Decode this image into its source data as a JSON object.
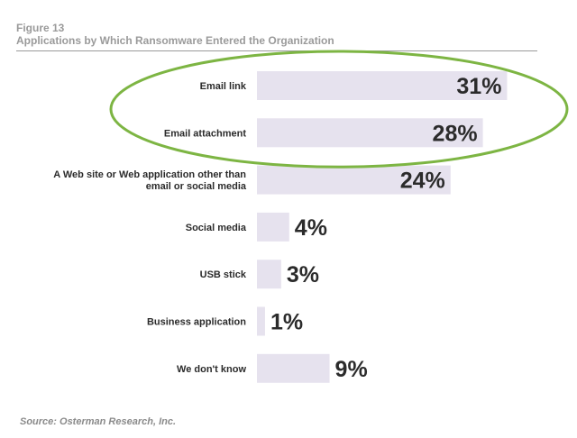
{
  "figure": {
    "label": "Figure 13",
    "title": "Applications by Which Ransomware Entered the Organization",
    "source": "Source: Osterman Research, Inc."
  },
  "colors": {
    "bar": "#e6e2ee",
    "value_text": "#2b2b2b",
    "category_text": "#2b2b2b",
    "highlight_ellipse": "#7db543"
  },
  "chart_data": {
    "type": "bar",
    "orientation": "horizontal",
    "categories": [
      "Email link",
      "Email attachment",
      "A Web site or Web application other than email or social media",
      "Social media",
      "USB stick",
      "Business application",
      "We don't know"
    ],
    "category_lines": [
      [
        "Email link"
      ],
      [
        "Email attachment"
      ],
      [
        "A Web site or Web application other than",
        "email or social media"
      ],
      [
        "Social media"
      ],
      [
        "USB stick"
      ],
      [
        "Business application"
      ],
      [
        "We don't know"
      ]
    ],
    "values": [
      31,
      28,
      24,
      4,
      3,
      1,
      9
    ],
    "value_labels": [
      "31%",
      "28%",
      "24%",
      "4%",
      "3%",
      "1%",
      "9%"
    ],
    "unit": "%",
    "highlighted_categories": [
      "Email link",
      "Email attachment"
    ],
    "grid": false,
    "legend": "none"
  }
}
